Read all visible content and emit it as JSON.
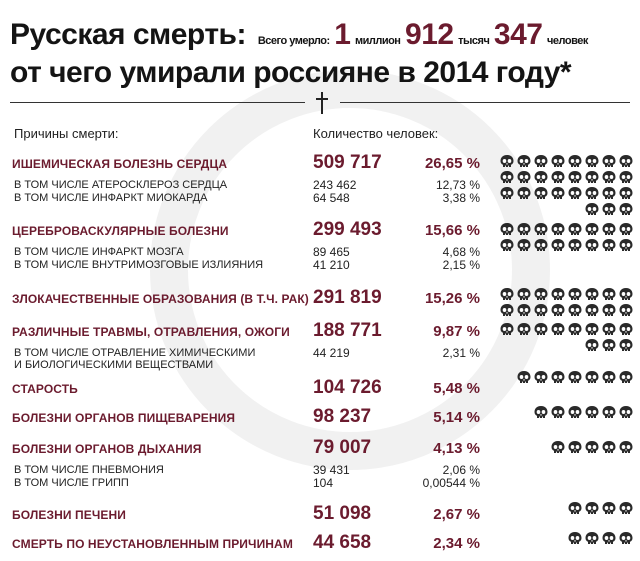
{
  "header": {
    "title_line1": "Русская смерть:",
    "total_label": "Всего умерло:",
    "total_millions": "1",
    "millions_word": "миллион",
    "total_thousands": "912",
    "thousands_word": "тысяч",
    "total_units": "347",
    "units_word": "человек",
    "title_line2": "от чего умирали россияне в 2014 году*"
  },
  "columns": {
    "causes": "Причины смерти:",
    "count": "Количество человек:"
  },
  "colors": {
    "accent": "#6b1b2e",
    "text": "#1a1a1a",
    "skull": "#2a2a2a",
    "watermark": "#f1f1f1"
  },
  "skull_icon": "skull-icon",
  "chart_data": {
    "type": "table",
    "title": "Русская смерть: от чего умирали россияне в 2014 году*",
    "total": "1 миллион 912 тысяч 347 человек",
    "rows": [
      {
        "label": "ИШЕМИЧЕСКАЯ БОЛЕЗНЬ СЕРДЦА",
        "count": "509 717",
        "percent": "26,65 %",
        "value": 509717,
        "skulls": 27,
        "sub": [
          {
            "label": "В ТОМ ЧИСЛЕ АТЕРОСКЛЕРОЗ СЕРДЦА",
            "count": "243 462",
            "percent": "12,73 %"
          },
          {
            "label": "В ТОМ ЧИСЛЕ ИНФАРКТ МИОКАРДА",
            "count": "64 548",
            "percent": "3,38 %"
          }
        ]
      },
      {
        "label": "ЦЕРЕБРОВАСКУЛЯРНЫЕ БОЛЕЗНИ",
        "count": "299 493",
        "percent": "15,66 %",
        "value": 299493,
        "skulls": 16,
        "sub": [
          {
            "label": "В ТОМ ЧИСЛЕ ИНФАРКТ МОЗГА",
            "count": "89 465",
            "percent": "4,68 %"
          },
          {
            "label": "В ТОМ ЧИСЛЕ ВНУТРИМОЗГОВЫЕ ИЗЛИЯНИЯ",
            "count": "41 210",
            "percent": "2,15 %"
          }
        ]
      },
      {
        "label": "ЗЛОКАЧЕСТВЕННЫЕ ОБРАЗОВАНИЯ (В Т.Ч. РАК)",
        "count": "291 819",
        "percent": "15,26 %",
        "value": 291819,
        "skulls": 16,
        "sub": []
      },
      {
        "label": "РАЗЛИЧНЫЕ ТРАВМЫ, ОТРАВЛЕНИЯ, ОЖОГИ",
        "count": "188 771",
        "percent": "9,87 %",
        "value": 188771,
        "skulls": 11,
        "sub": [
          {
            "label": "В ТОМ ЧИСЛЕ ОТРАВЛЕНИЕ ХИМИЧЕСКИМИ\nИ БИОЛОГИЧЕСКИМИ ВЕЩЕСТВАМИ",
            "count": "44 219",
            "percent": "2,31 %"
          }
        ]
      },
      {
        "label": "СТАРОСТЬ",
        "count": "104 726",
        "percent": "5,48 %",
        "value": 104726,
        "skulls": 7,
        "sub": []
      },
      {
        "label": "БОЛЕЗНИ ОРГАНОВ ПИЩЕВАРЕНИЯ",
        "count": "98 237",
        "percent": "5,14 %",
        "value": 98237,
        "skulls": 6,
        "sub": []
      },
      {
        "label": "БОЛЕЗНИ ОРГАНОВ ДЫХАНИЯ",
        "count": "79 007",
        "percent": "4,13 %",
        "value": 79007,
        "skulls": 5,
        "sub": [
          {
            "label": "В ТОМ ЧИСЛЕ ПНЕВМОНИЯ",
            "count": "39 431",
            "percent": "2,06 %"
          },
          {
            "label": "В ТОМ ЧИСЛЕ ГРИПП",
            "count": "104",
            "percent": "0,00544 %"
          }
        ]
      },
      {
        "label": "БОЛЕЗНИ ПЕЧЕНИ",
        "count": "51 098",
        "percent": "2,67 %",
        "value": 51098,
        "skulls": 4,
        "sub": []
      },
      {
        "label": "СМЕРТЬ ПО НЕУСТАНОВЛЕННЫМ ПРИЧИНАМ",
        "count": "44 658",
        "percent": "2,34 %",
        "value": 44658,
        "skulls": 4,
        "sub": []
      }
    ]
  }
}
